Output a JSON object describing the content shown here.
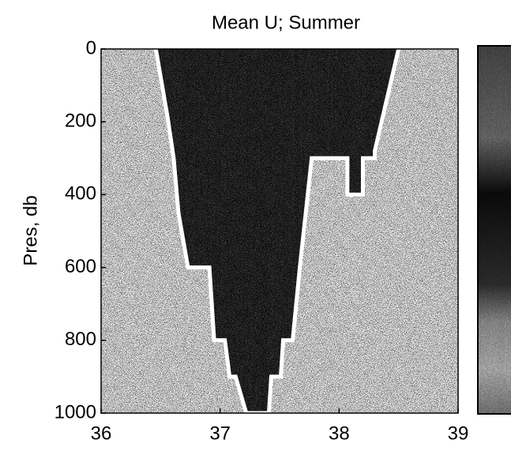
{
  "chart_data": {
    "type": "heatmap",
    "title": "Mean U; Summer",
    "ylabel": "Pres, db",
    "xlim": [
      36,
      39
    ],
    "xticks": [
      36,
      37,
      38,
      39
    ],
    "ylim": [
      1000,
      0
    ],
    "yticks": [
      0,
      200,
      400,
      600,
      800,
      1000
    ],
    "y_reversed": true,
    "outline": {
      "x": [
        36.46,
        36.56,
        36.61,
        36.65,
        36.73,
        36.91,
        36.95,
        37.04,
        37.08,
        37.13,
        37.22,
        37.41,
        37.43,
        37.51,
        37.53,
        37.61,
        37.67,
        37.77,
        38.07,
        38.07,
        38.2,
        38.2,
        38.3,
        38.3,
        38.5
      ],
      "y": [
        0,
        190,
        300,
        450,
        600,
        600,
        800,
        800,
        900,
        900,
        1000,
        1000,
        900,
        900,
        800,
        800,
        600,
        300,
        300,
        400,
        400,
        300,
        300,
        280,
        0
      ]
    },
    "colorbar": true
  }
}
